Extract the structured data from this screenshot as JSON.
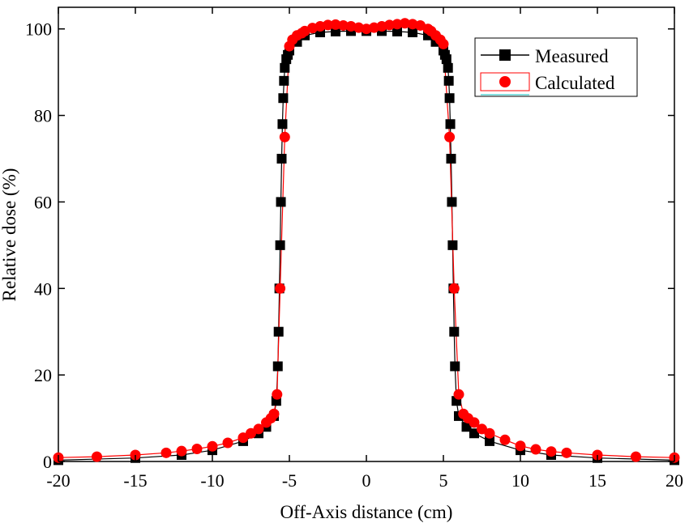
{
  "chart_data": {
    "type": "scatter",
    "title": "",
    "xlabel": "Off-Axis distance (cm)",
    "ylabel": "Relative dose (%)",
    "xlim": [
      -20,
      20
    ],
    "ylim": [
      0,
      105
    ],
    "x_ticks": [
      -20,
      -15,
      -10,
      -5,
      0,
      5,
      10,
      15,
      20
    ],
    "y_ticks": [
      0,
      20,
      40,
      60,
      80,
      100
    ],
    "x_tick_labels": [
      "-20",
      "-15",
      "-10",
      "-5",
      "0",
      "5",
      "10",
      "15",
      "20"
    ],
    "y_tick_labels": [
      "0",
      "20",
      "40",
      "60",
      "80",
      "100"
    ],
    "grid": false,
    "legend_position": "top-right",
    "series": [
      {
        "name": "Measured",
        "color": "#000000",
        "marker": "square",
        "line": true,
        "x": [
          -20,
          -15,
          -12,
          -10,
          -8,
          -7,
          -6.5,
          -6,
          -5.85,
          -5.75,
          -5.7,
          -5.65,
          -5.6,
          -5.55,
          -5.5,
          -5.45,
          -5.4,
          -5.35,
          -5.3,
          -5.2,
          -5.1,
          -5,
          -4.5,
          -4,
          -3,
          -2,
          -1,
          0,
          1,
          2,
          3,
          4,
          4.5,
          5,
          5.1,
          5.2,
          5.3,
          5.35,
          5.4,
          5.45,
          5.5,
          5.55,
          5.6,
          5.65,
          5.7,
          5.75,
          5.85,
          6,
          6.5,
          7,
          8,
          10,
          12,
          15,
          20
        ],
        "y": [
          0.3,
          0.8,
          1.5,
          2.6,
          4.7,
          6.5,
          8.0,
          10.5,
          14.0,
          22.0,
          30.0,
          40.0,
          50.0,
          60.0,
          70.0,
          78.0,
          84.0,
          88.0,
          91.0,
          93.0,
          94.0,
          95.0,
          97.0,
          98.5,
          99.2,
          99.4,
          99.5,
          99.5,
          99.5,
          99.4,
          99.2,
          98.5,
          97.0,
          95.0,
          94.0,
          93.0,
          91.0,
          88.0,
          84.0,
          78.0,
          70.0,
          60.0,
          50.0,
          40.0,
          30.0,
          22.0,
          14.0,
          10.5,
          8.0,
          6.5,
          4.7,
          2.6,
          1.5,
          0.8,
          0.3
        ]
      },
      {
        "name": "Calculated",
        "color": "#ff0000",
        "marker": "circle",
        "line": true,
        "x": [
          -20,
          -17.5,
          -15,
          -13,
          -12,
          -11,
          -10,
          -9,
          -8,
          -7.5,
          -7,
          -6.5,
          -6.2,
          -6.0,
          -5.8,
          -5.6,
          -5.3,
          -5.0,
          -4.8,
          -4.5,
          -4.2,
          -4,
          -3.5,
          -3,
          -2.5,
          -2,
          -1.5,
          -1,
          -0.5,
          0,
          0.5,
          1,
          1.5,
          2,
          2.5,
          3,
          3.5,
          4,
          4.2,
          4.5,
          4.8,
          5.0,
          5.4,
          5.7,
          6.0,
          6.3,
          6.6,
          7,
          7.5,
          8,
          9,
          10,
          11,
          12,
          13,
          15,
          17.5,
          20
        ],
        "y": [
          0.9,
          1.1,
          1.5,
          2.0,
          2.4,
          2.9,
          3.5,
          4.3,
          5.5,
          6.5,
          7.5,
          9.0,
          10.0,
          11.0,
          15.5,
          40.0,
          75.0,
          96.0,
          97.5,
          98.5,
          99.0,
          99.5,
          100.2,
          100.6,
          100.9,
          101.0,
          100.8,
          100.6,
          100.3,
          100.0,
          100.3,
          100.6,
          100.9,
          101.1,
          101.3,
          101.1,
          100.8,
          100.0,
          99.5,
          98.5,
          97.5,
          96.5,
          75.0,
          40.0,
          15.5,
          11.0,
          10.0,
          9.0,
          7.5,
          6.5,
          5.0,
          3.6,
          2.8,
          2.3,
          2.0,
          1.5,
          1.1,
          0.9
        ]
      }
    ]
  }
}
